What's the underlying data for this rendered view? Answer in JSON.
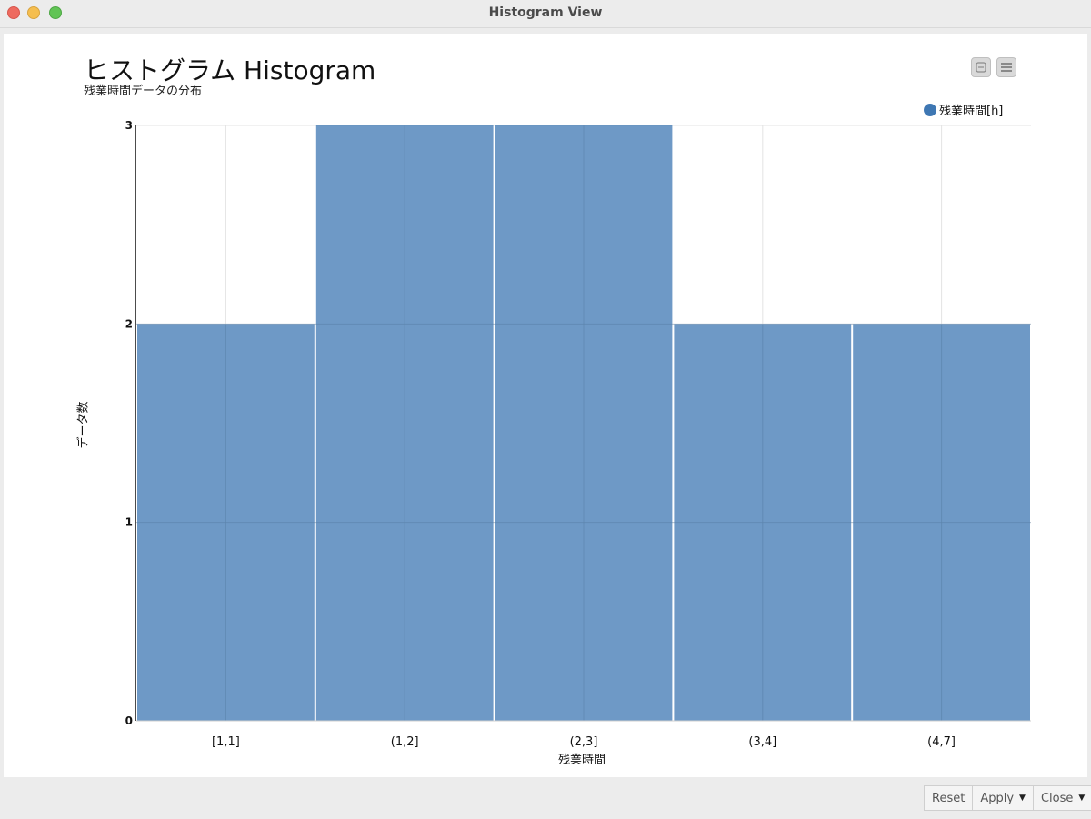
{
  "window": {
    "title": "Histogram View"
  },
  "header": {
    "title": "ヒストグラム Histogram",
    "subtitle": "残業時間データの分布"
  },
  "toolbar": {
    "icons": [
      "minimize-chart-icon",
      "menu-icon"
    ]
  },
  "footer": {
    "reset_label": "Reset",
    "apply_label": "Apply",
    "close_label": "Close"
  },
  "chart_data": {
    "type": "bar",
    "title": "ヒストグラム Histogram",
    "subtitle": "残業時間データの分布",
    "xlabel": "残業時間",
    "ylabel": "データ数",
    "categories": [
      "[1,1]",
      "(1,2]",
      "(2,3]",
      "(3,4]",
      "(4,7]"
    ],
    "series": [
      {
        "name": "残業時間[h]",
        "values": [
          2,
          3,
          3,
          2,
          2
        ],
        "color": "#3e77b3"
      }
    ],
    "ylim": [
      0,
      3
    ],
    "yticks": [
      0,
      1,
      2,
      3
    ],
    "grid": true,
    "legend_position": "top-right"
  }
}
